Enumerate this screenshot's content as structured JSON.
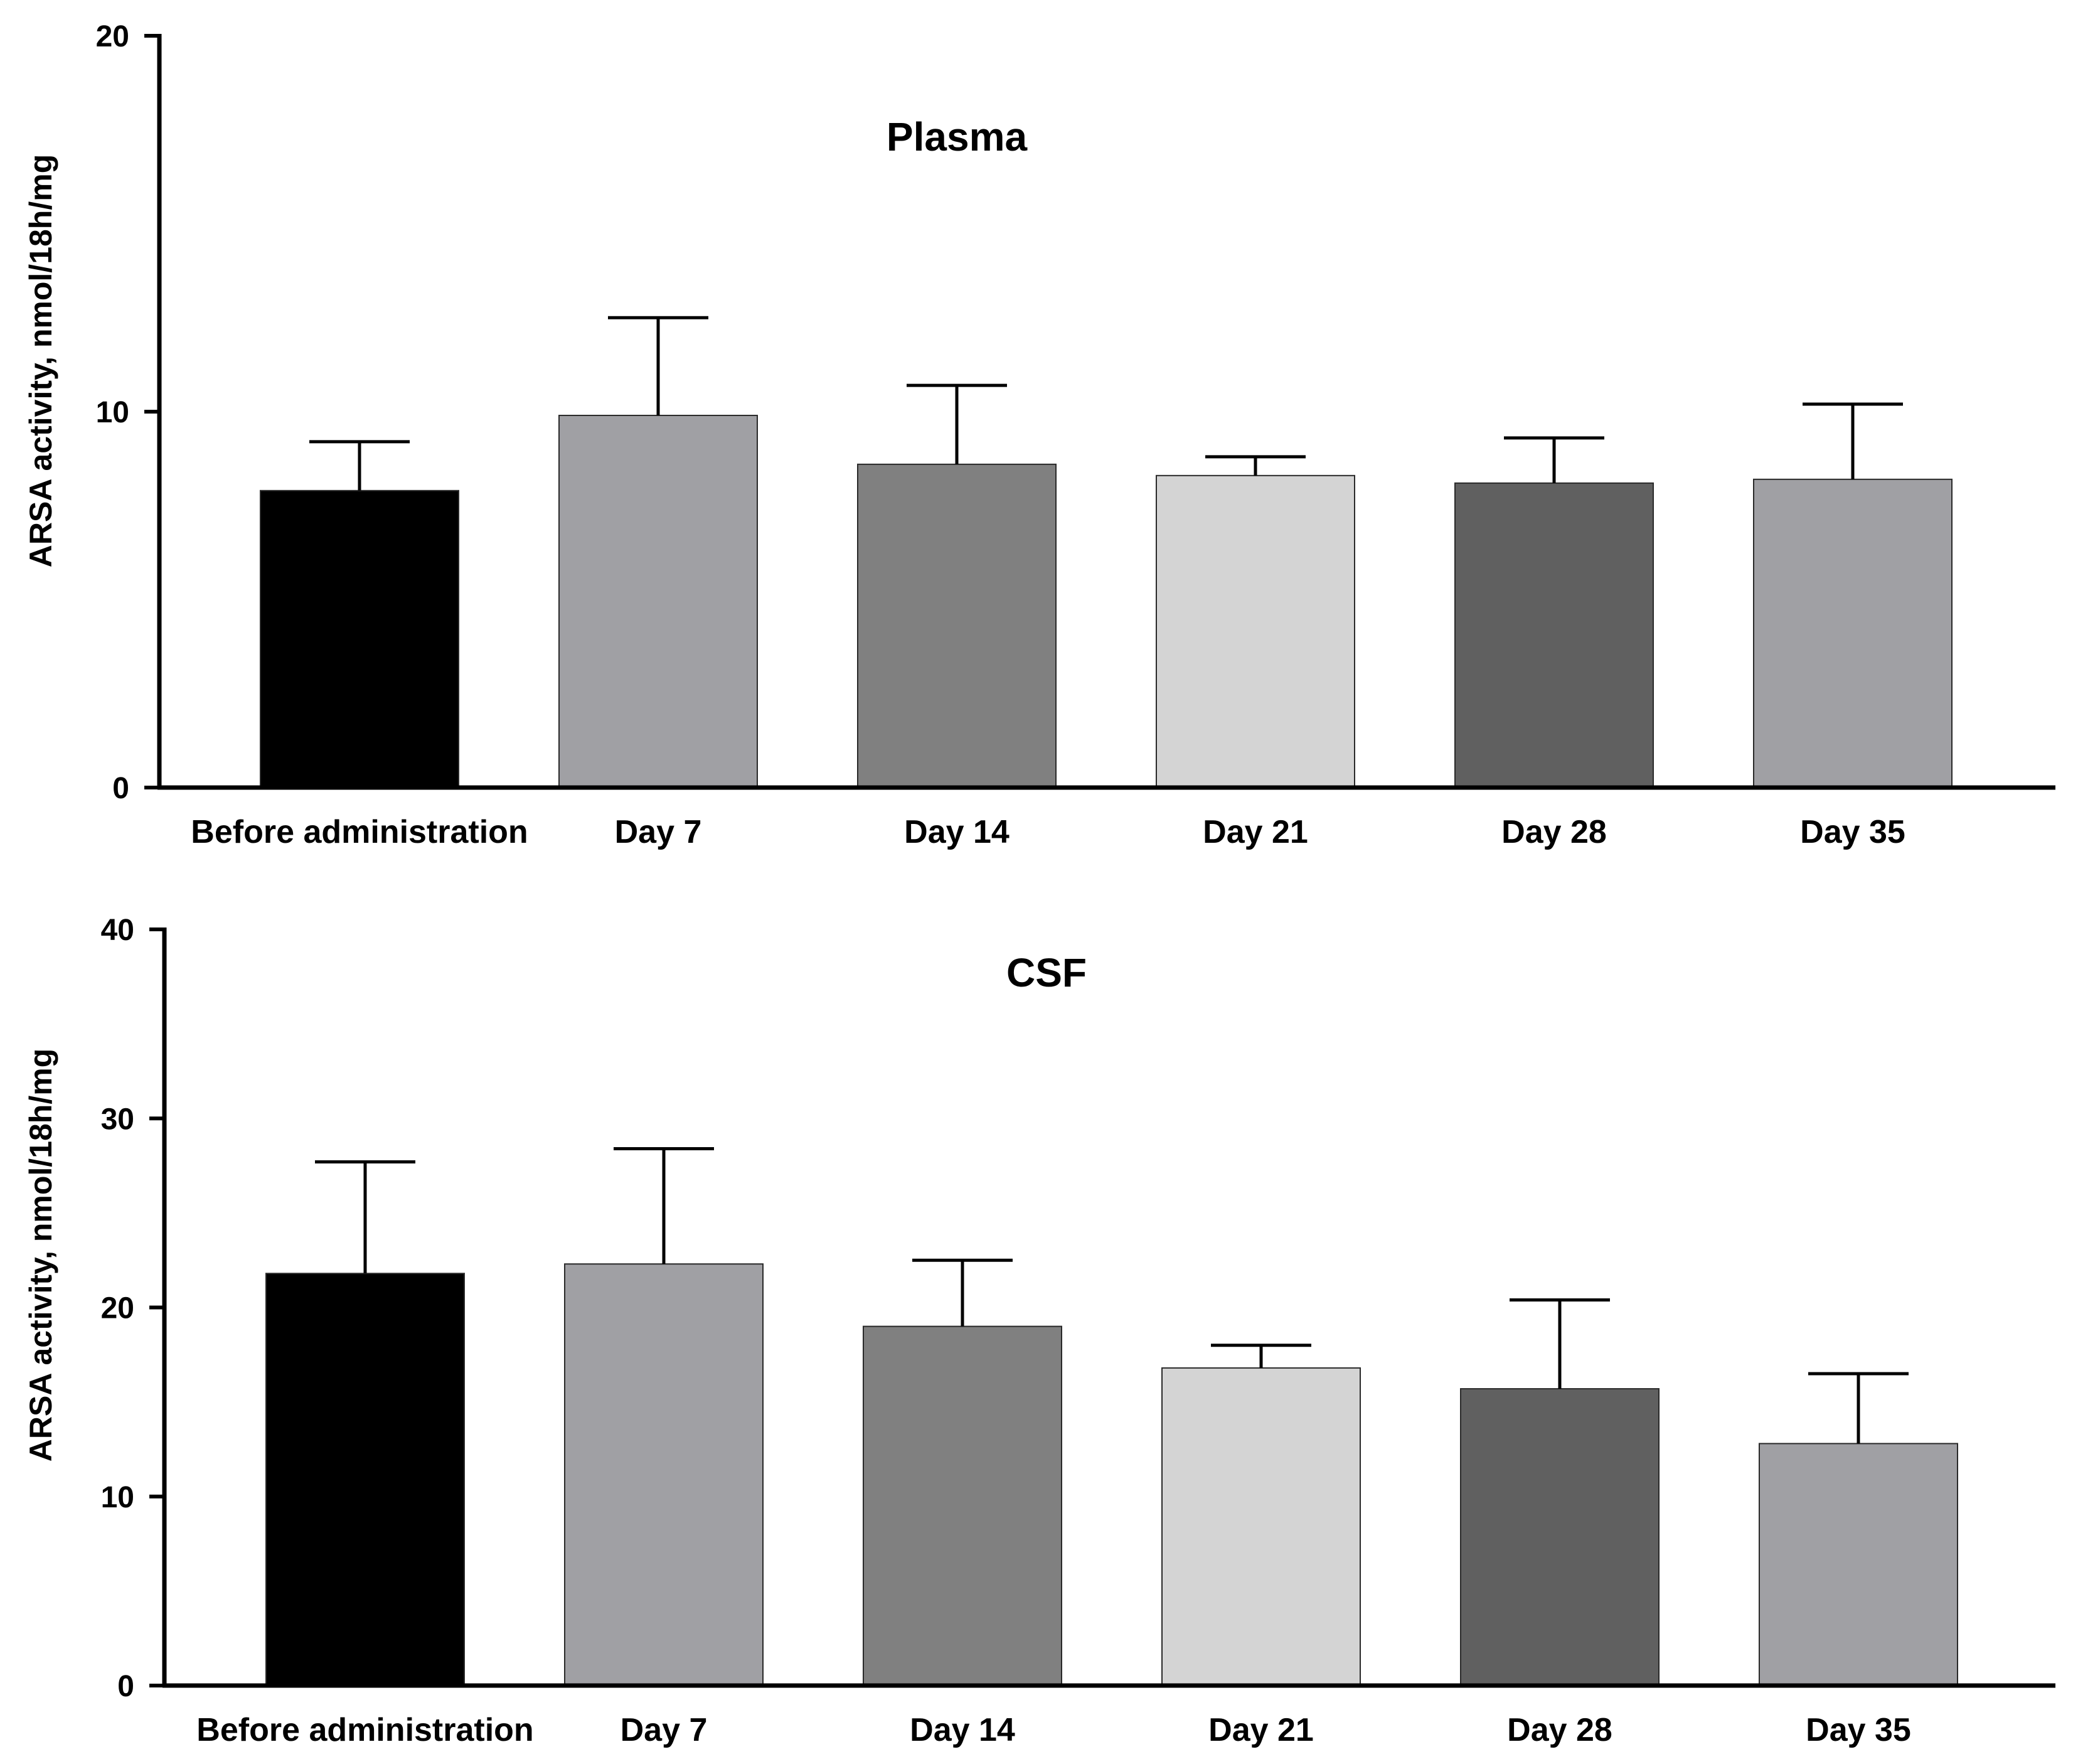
{
  "chart_data": [
    {
      "type": "bar",
      "title": "Plasma",
      "xlabel": "",
      "ylabel": "ARSA activity, nmol/18h/mg",
      "categories": [
        "Before administration",
        "Day 7",
        "Day 14",
        "Day 21",
        "Day 28",
        "Day 35"
      ],
      "values": [
        7.9,
        9.9,
        8.6,
        8.3,
        8.1,
        8.2
      ],
      "error_upper": [
        9.2,
        12.5,
        10.7,
        8.8,
        9.3,
        10.2
      ],
      "ylim": [
        0,
        20
      ],
      "yticks": [
        "0",
        "10",
        "20"
      ],
      "bar_colors": [
        "#000000",
        "#a0a0a4",
        "#808080",
        "#d4d4d4",
        "#606060",
        "#a0a0a4"
      ],
      "grid": false,
      "legend": "none"
    },
    {
      "type": "bar",
      "title": "CSF",
      "xlabel": "",
      "ylabel": "ARSA activity, nmol/18h/mg",
      "categories": [
        "Before administration",
        "Day 7",
        "Day 14",
        "Day 21",
        "Day 28",
        "Day 35"
      ],
      "values": [
        21.8,
        22.3,
        19.0,
        16.8,
        15.7,
        12.8
      ],
      "error_upper": [
        27.7,
        28.4,
        22.5,
        18.0,
        20.4,
        16.5
      ],
      "ylim": [
        0,
        40
      ],
      "yticks": [
        "0",
        "10",
        "20",
        "30",
        "40"
      ],
      "bar_colors": [
        "#000000",
        "#a0a0a4",
        "#808080",
        "#d4d4d4",
        "#606060",
        "#a0a0a4"
      ],
      "grid": false,
      "legend": "none"
    }
  ]
}
